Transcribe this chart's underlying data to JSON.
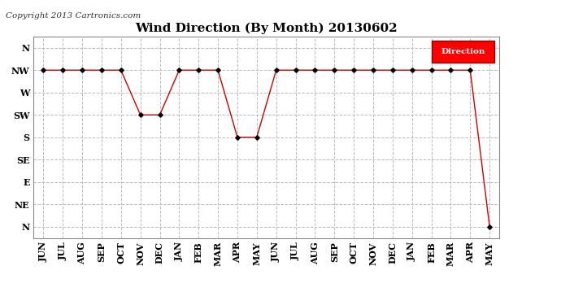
{
  "title": "Wind Direction (By Month) 20130602",
  "copyright": "Copyright 2013 Cartronics.com",
  "legend_label": "Direction",
  "legend_bg": "#ff0000",
  "legend_text_color": "#ffffff",
  "x_labels": [
    "JUN",
    "JUL",
    "AUG",
    "SEP",
    "OCT",
    "NOV",
    "DEC",
    "JAN",
    "FEB",
    "MAR",
    "APR",
    "MAY",
    "JUN",
    "JUL",
    "AUG",
    "SEP",
    "OCT",
    "NOV",
    "DEC",
    "JAN",
    "FEB",
    "MAR",
    "APR",
    "MAY"
  ],
  "y_labels": [
    "N",
    "NW",
    "W",
    "SW",
    "S",
    "SE",
    "E",
    "NE",
    "N"
  ],
  "data_values": [
    1,
    1,
    1,
    1,
    1,
    3,
    3,
    1,
    1,
    1,
    4,
    4,
    1,
    1,
    1,
    1,
    1,
    1,
    1,
    1,
    1,
    1,
    1,
    8
  ],
  "line_color": "#cc0000",
  "marker_color": "#000000",
  "bg_color": "#ffffff",
  "grid_color": "#bbbbbb",
  "title_fontsize": 11,
  "copyright_fontsize": 7.5,
  "tick_fontsize": 8
}
